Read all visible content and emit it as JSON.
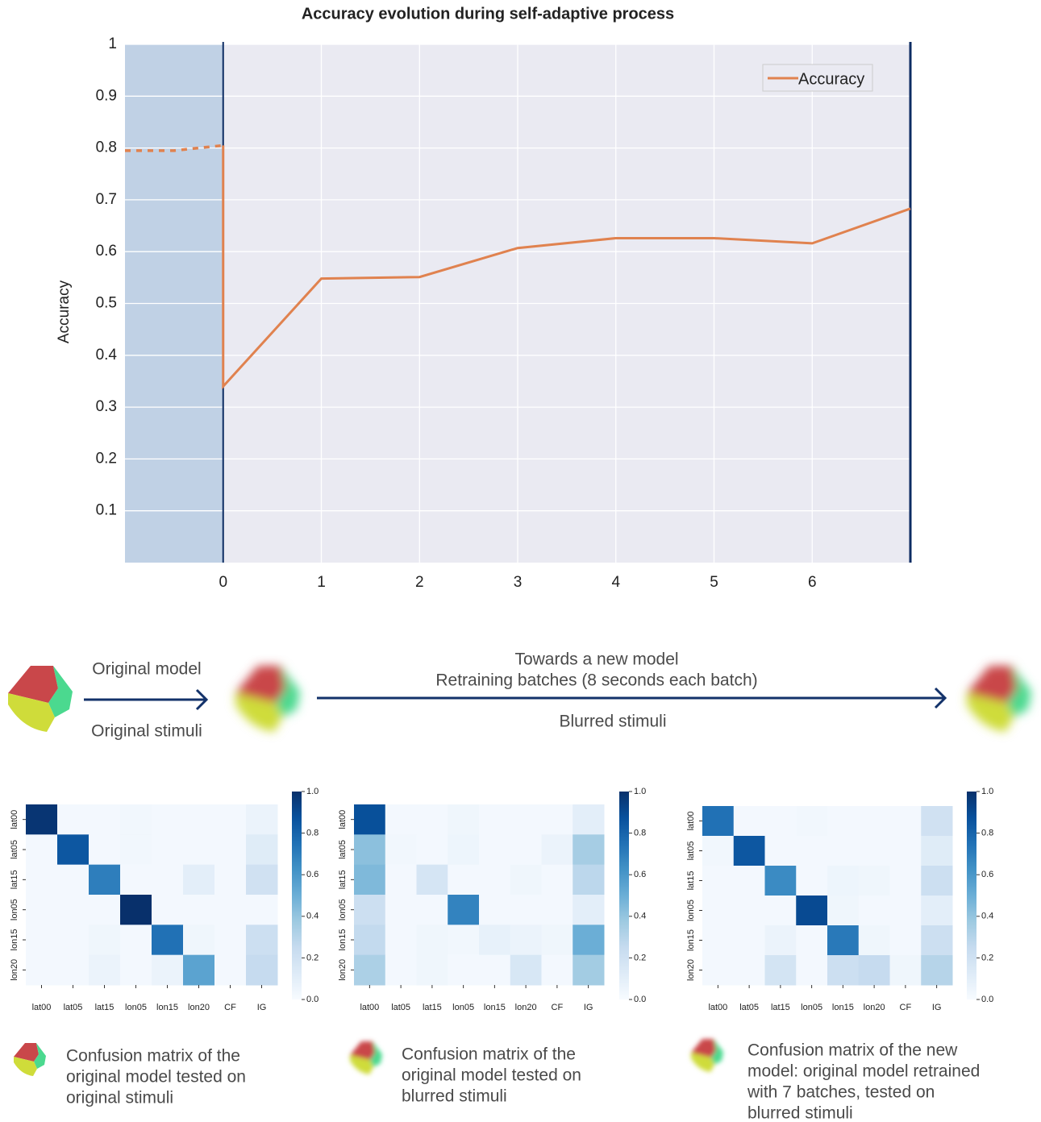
{
  "chart_data": [
    {
      "type": "line",
      "title": "Accuracy evolution during self-adaptive process",
      "ylabel": "Accuracy",
      "xlim": [
        -1,
        7
      ],
      "xticks": [
        0,
        1,
        2,
        3,
        4,
        5,
        6
      ],
      "ylim": [
        0,
        1
      ],
      "yticks": [
        0.1,
        0.2,
        0.3,
        0.4,
        0.5,
        0.6,
        0.7,
        0.8,
        0.9,
        1
      ],
      "grid": true,
      "legend": "upper right",
      "background": "#eaeaf2",
      "shaded_span": [
        -1,
        0
      ],
      "shade_color": "#c0d1e5",
      "vlines": [
        0,
        7
      ],
      "vline_color": "#0d2c63",
      "series": [
        {
          "name": "Accuracy",
          "color": "#e0824f",
          "style": "solid",
          "x": [
            0,
            0,
            1,
            2,
            3,
            4,
            5,
            6,
            7
          ],
          "values": [
            0.805,
            0.34,
            0.548,
            0.551,
            0.607,
            0.626,
            0.626,
            0.616,
            0.683
          ]
        },
        {
          "color": "#e0824f",
          "style": "dashed",
          "x": [
            -1,
            -0.5,
            0
          ],
          "values": [
            0.795,
            0.795,
            0.805
          ]
        }
      ]
    },
    {
      "type": "heatmap",
      "colormap": "Blues",
      "clim": [
        0,
        1
      ],
      "categories": [
        "lat00",
        "lat05",
        "lat15",
        "lon05",
        "lon15",
        "lon20",
        "CF",
        "IG"
      ],
      "rows": [
        "lat00",
        "lat05",
        "lat15",
        "lon05",
        "lon15",
        "lon20"
      ],
      "cticks": [
        {
          "value": 0,
          "label": "0.0"
        },
        {
          "value": 0.2,
          "label": "0.2"
        },
        {
          "value": 0.4,
          "label": "0.4"
        },
        {
          "value": 0.6,
          "label": "0.6"
        },
        {
          "value": 0.8,
          "label": "0.8"
        },
        {
          "value": 1,
          "label": "1.0"
        }
      ],
      "values": [
        [
          0.98,
          0.02,
          0.02,
          0.03,
          0.02,
          0.02,
          0.02,
          0.06
        ],
        [
          0.02,
          0.85,
          0.02,
          0.03,
          0.02,
          0.02,
          0.02,
          0.12
        ],
        [
          0.02,
          0.02,
          0.7,
          0.02,
          0.02,
          0.1,
          0.02,
          0.2
        ],
        [
          0.02,
          0.02,
          0.02,
          1.0,
          0.02,
          0.02,
          0.02,
          0.02
        ],
        [
          0.02,
          0.02,
          0.04,
          0.02,
          0.75,
          0.04,
          0.02,
          0.22
        ],
        [
          0.02,
          0.02,
          0.06,
          0.02,
          0.06,
          0.55,
          0.02,
          0.25
        ]
      ]
    },
    {
      "type": "heatmap",
      "colormap": "Blues",
      "clim": [
        0,
        1
      ],
      "categories": [
        "lat00",
        "lat05",
        "lat15",
        "lon05",
        "lon15",
        "lon20",
        "CF",
        "IG"
      ],
      "rows": [
        "lat00",
        "lat05",
        "lat15",
        "lon05",
        "lon15",
        "lon20"
      ],
      "cticks": [
        {
          "value": 0,
          "label": "0.0"
        },
        {
          "value": 0.2,
          "label": "0.2"
        },
        {
          "value": 0.4,
          "label": "0.4"
        },
        {
          "value": 0.6,
          "label": "0.6"
        },
        {
          "value": 0.8,
          "label": "0.8"
        },
        {
          "value": 1,
          "label": "1.0"
        }
      ],
      "values": [
        [
          0.88,
          0.02,
          0.02,
          0.04,
          0.02,
          0.02,
          0.02,
          0.1
        ],
        [
          0.42,
          0.03,
          0.02,
          0.05,
          0.02,
          0.02,
          0.06,
          0.35
        ],
        [
          0.45,
          0.02,
          0.17,
          0.02,
          0.02,
          0.04,
          0.02,
          0.28
        ],
        [
          0.22,
          0.02,
          0.02,
          0.68,
          0.02,
          0.02,
          0.02,
          0.1
        ],
        [
          0.26,
          0.02,
          0.04,
          0.03,
          0.08,
          0.06,
          0.04,
          0.5
        ],
        [
          0.33,
          0.02,
          0.04,
          0.02,
          0.02,
          0.16,
          0.02,
          0.36
        ]
      ]
    },
    {
      "type": "heatmap",
      "colormap": "Blues",
      "clim": [
        0,
        1
      ],
      "categories": [
        "lat00",
        "lat05",
        "lat15",
        "lon05",
        "lon15",
        "lon20",
        "CF",
        "IG"
      ],
      "rows": [
        "lat00",
        "lat05",
        "lat15",
        "lon05",
        "lon15",
        "lon20"
      ],
      "cticks": [
        {
          "value": 0,
          "label": "0.0"
        },
        {
          "value": 0.2,
          "label": "0.2"
        },
        {
          "value": 0.4,
          "label": "0.4"
        },
        {
          "value": 0.6,
          "label": "0.6"
        },
        {
          "value": 0.8,
          "label": "0.8"
        },
        {
          "value": 1,
          "label": "1.0"
        }
      ],
      "values": [
        [
          0.75,
          0.02,
          0.02,
          0.03,
          0.02,
          0.02,
          0.02,
          0.2
        ],
        [
          0.03,
          0.85,
          0.02,
          0.02,
          0.02,
          0.02,
          0.02,
          0.12
        ],
        [
          0.02,
          0.02,
          0.65,
          0.02,
          0.05,
          0.04,
          0.02,
          0.22
        ],
        [
          0.02,
          0.02,
          0.02,
          0.9,
          0.04,
          0.02,
          0.02,
          0.1
        ],
        [
          0.02,
          0.02,
          0.06,
          0.02,
          0.72,
          0.04,
          0.02,
          0.22
        ],
        [
          0.02,
          0.02,
          0.18,
          0.02,
          0.22,
          0.25,
          0.04,
          0.3
        ]
      ]
    }
  ],
  "diagram": {
    "left_top": "Original model",
    "left_bottom": "Original stimuli",
    "right_top": [
      "Towards a new model",
      "Retraining batches (8 seconds each batch)"
    ],
    "right_bottom": "Blurred stimuli"
  },
  "captions": [
    [
      "Confusion matrix of the",
      "original model tested on",
      "original stimuli"
    ],
    [
      "Confusion matrix of the",
      "original model tested on",
      "blurred stimuli"
    ],
    [
      "Confusion matrix of the new",
      "model: original model retrained",
      "with 7 batches, tested on",
      "blurred stimuli"
    ]
  ]
}
